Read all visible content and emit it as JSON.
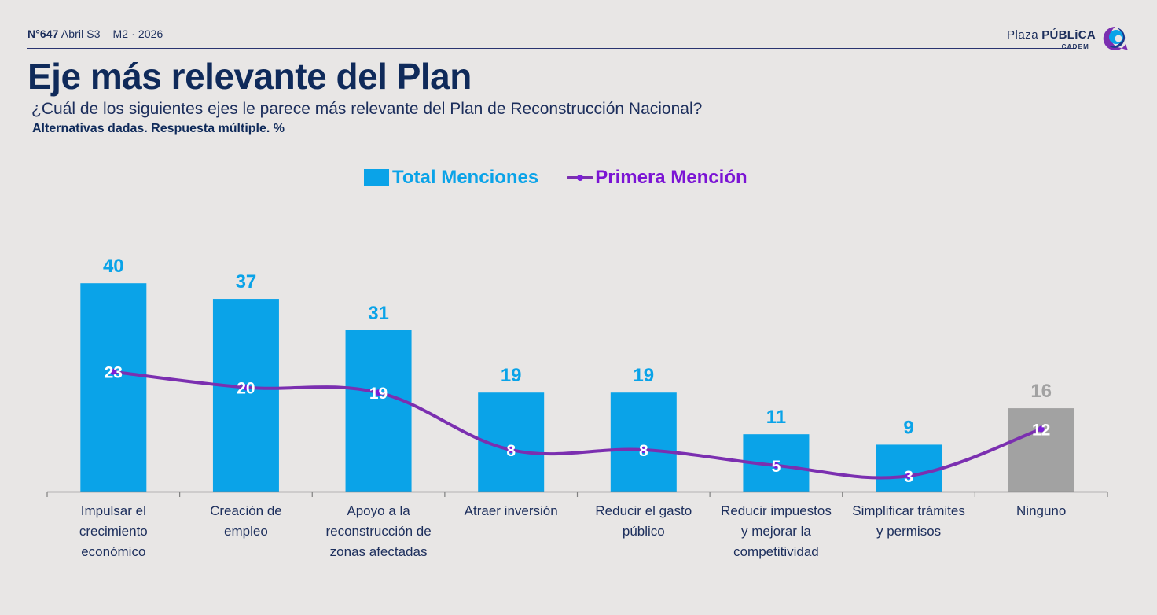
{
  "header": {
    "issue_number": "N°647",
    "issue_date": "Abril S3 – M2 · 2026",
    "logo_light": "Plaza",
    "logo_bold": "PÚBLiCA",
    "logo_sub": "CADEM",
    "logo_icon": "speech-bubble-logo-icon"
  },
  "title": "Eje más relevante del Plan",
  "question": "¿Cuál de los siguientes ejes le parece más relevante del Plan de Reconstrucción Nacional?",
  "note": "Alternativas dadas. Respuesta múltiple. %",
  "colors": {
    "bar": "#0aa3e8",
    "bar_other": "#a2a2a2",
    "line": "#7b2fb0",
    "line_label": "#ffffff",
    "bar_label": "#0aa3e8",
    "bar_label_other": "#a2a2a2",
    "axis": "#808080",
    "title": "#0f2a5a"
  },
  "chart_data": {
    "type": "bar",
    "title": "Eje más relevante del Plan",
    "xlabel": "",
    "ylabel": "",
    "ylim": [
      0,
      40
    ],
    "grid": false,
    "legend_position": "top-center",
    "categories": [
      "Impulsar el crecimiento económico",
      "Creación de empleo",
      "Apoyo a la reconstrucción de zonas afectadas",
      "Atraer inversión",
      "Reducir el gasto público",
      "Reducir impuestos y mejorar la competitividad",
      "Simplificar trámites y permisos",
      "Ninguno"
    ],
    "category_lines": [
      [
        "Impulsar el",
        "crecimiento",
        "económico"
      ],
      [
        "Creación de",
        "empleo"
      ],
      [
        "Apoyo a la",
        "reconstrucción de",
        "zonas afectadas"
      ],
      [
        "Atraer inversión"
      ],
      [
        "Reducir el gasto",
        "público"
      ],
      [
        "Reducir impuestos",
        "y mejorar la",
        "competitividad"
      ],
      [
        "Simplificar trámites",
        "y permisos"
      ],
      [
        "Ninguno"
      ]
    ],
    "series": [
      {
        "name": "Total Menciones",
        "type": "bar",
        "values": [
          40,
          37,
          31,
          19,
          19,
          11,
          9,
          16
        ],
        "highlight_other_index": 7
      },
      {
        "name": "Primera Mención",
        "type": "line",
        "smooth": true,
        "values": [
          23,
          20,
          19,
          8,
          8,
          5,
          3,
          12
        ]
      }
    ]
  }
}
